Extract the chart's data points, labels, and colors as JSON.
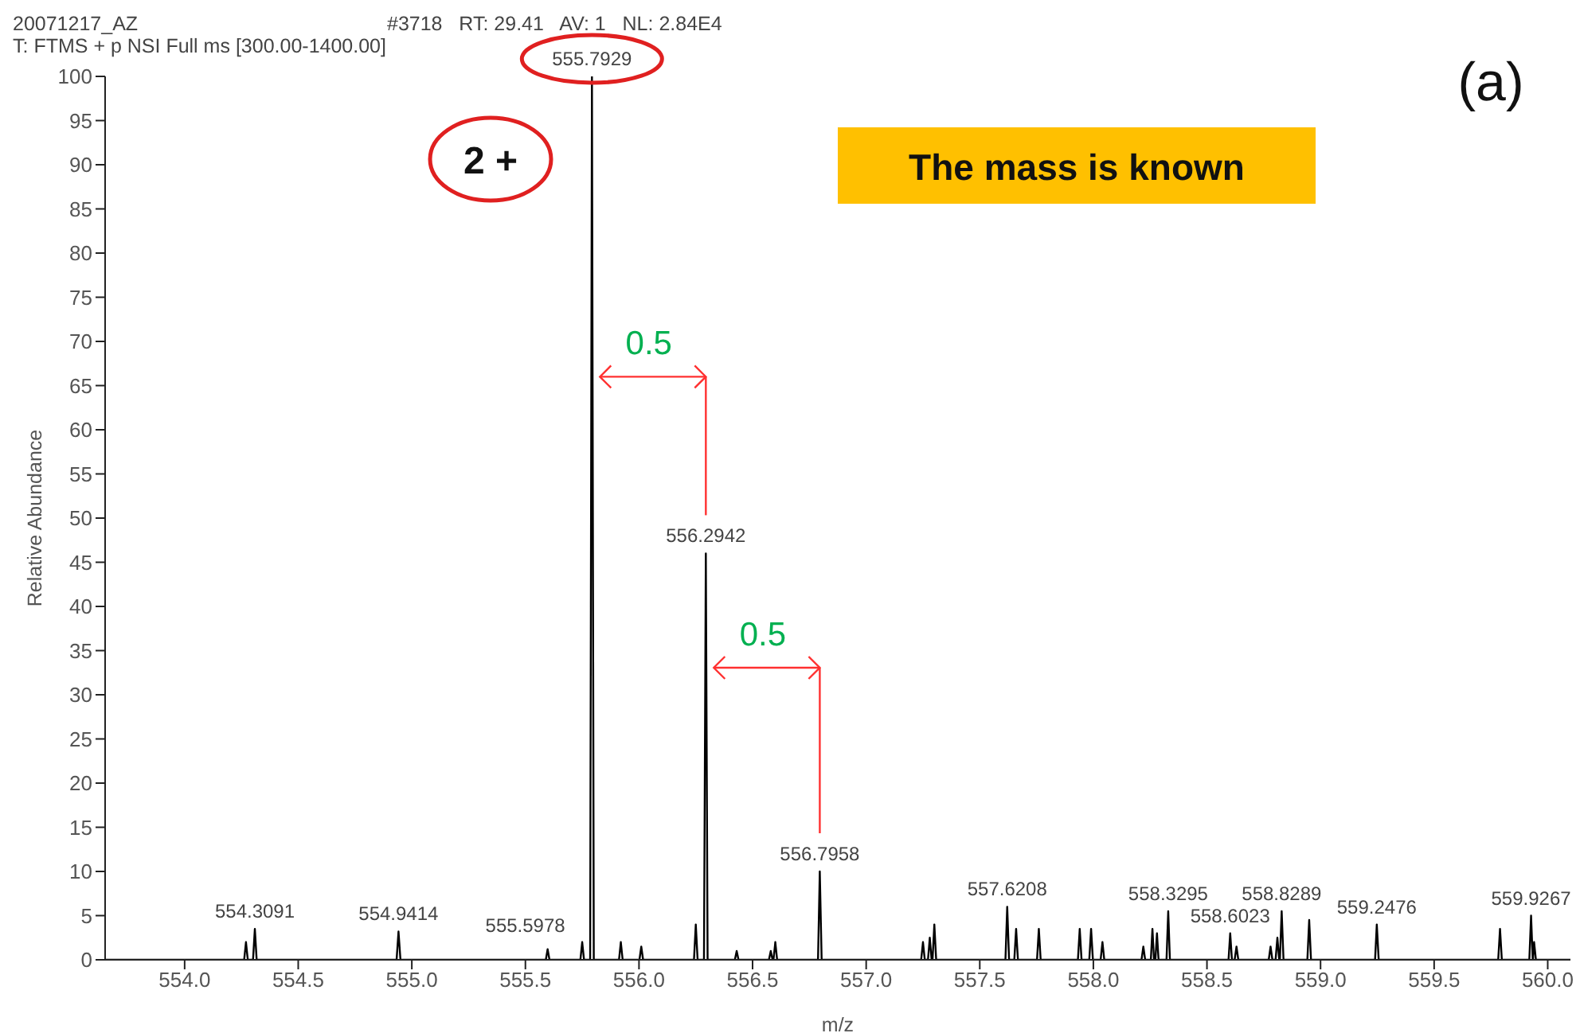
{
  "chart_data": {
    "type": "line",
    "xlabel": "m/z",
    "ylabel": "Relative Abundance",
    "annotations": [
      "20071217_AZ",
      "#3718   RT: 29.41   AV: 1   NL: 2.84E4",
      "T: FTMS + p NSI Full ms [300.00-1400.00]",
      "(a)",
      "2 +",
      "The mass is known",
      "0.5",
      "0.5",
      {
        "text": "554.3091",
        "x": 554.3091,
        "y": 3.5
      },
      {
        "text": "554.9414",
        "x": 554.9414,
        "y": 3.2
      },
      {
        "text": "555.5978",
        "x": 555.5978,
        "y": 1.2
      },
      {
        "text": "555.7929",
        "x": 555.7929,
        "y": 100
      },
      {
        "text": "556.2942",
        "x": 556.2942,
        "y": 46
      },
      {
        "text": "556.7958",
        "x": 556.7958,
        "y": 10
      },
      {
        "text": "557.6208",
        "x": 557.6208,
        "y": 6
      },
      {
        "text": "558.3295",
        "x": 558.3295,
        "y": 5.5
      },
      {
        "text": "558.6023",
        "x": 558.6023,
        "y": 3
      },
      {
        "text": "558.8289",
        "x": 558.8289,
        "y": 5.5
      },
      {
        "text": "559.2476",
        "x": 559.2476,
        "y": 4
      },
      {
        "text": "559.9267",
        "x": 559.9267,
        "y": 5
      }
    ],
    "x": [
      553.65,
      554.262,
      554.27,
      554.278,
      554.301,
      554.3091,
      554.317,
      554.933,
      554.9414,
      554.95,
      555.59,
      555.5978,
      555.606,
      555.742,
      555.75,
      555.758,
      555.785,
      555.7929,
      555.801,
      555.912,
      555.92,
      555.928,
      556.002,
      556.01,
      556.018,
      556.242,
      556.25,
      556.258,
      556.286,
      556.2942,
      556.302,
      556.422,
      556.43,
      556.438,
      556.572,
      556.58,
      556.588,
      556.592,
      556.6,
      556.608,
      556.788,
      556.7958,
      556.804,
      557.242,
      557.25,
      557.258,
      557.272,
      557.28,
      557.288,
      557.292,
      557.3,
      557.308,
      557.613,
      557.6208,
      557.629,
      557.652,
      557.66,
      557.668,
      557.752,
      557.76,
      557.768,
      557.932,
      557.94,
      557.948,
      557.982,
      557.99,
      557.998,
      558.032,
      558.04,
      558.048,
      558.212,
      558.22,
      558.228,
      558.253,
      558.26,
      558.267,
      558.273,
      558.28,
      558.287,
      558.322,
      558.3295,
      558.337,
      558.595,
      558.6023,
      558.61,
      558.622,
      558.63,
      558.638,
      558.772,
      558.78,
      558.788,
      558.802,
      558.81,
      558.818,
      558.821,
      558.8289,
      558.837,
      558.942,
      558.95,
      558.958,
      559.24,
      559.2476,
      559.256,
      559.782,
      559.79,
      559.798,
      559.919,
      559.9267,
      559.934,
      559.935,
      559.94,
      559.948,
      560.1
    ],
    "series": [
      {
        "color": "#000000",
        "values": [
          0,
          0,
          2,
          0,
          0,
          3.5,
          0,
          0,
          3.2,
          0,
          0,
          1.2,
          0,
          0,
          2,
          0,
          0,
          100,
          0,
          0,
          2,
          0,
          0,
          1.5,
          0,
          0,
          4,
          0,
          0,
          46,
          0,
          0,
          1,
          0,
          0,
          1,
          0,
          0,
          2,
          0,
          0,
          10,
          0,
          0,
          2,
          0,
          0,
          2.5,
          0,
          0,
          4,
          0,
          0,
          6,
          0,
          0,
          3.5,
          0,
          0,
          3.5,
          0,
          0,
          3.5,
          0,
          0,
          3.5,
          0,
          0,
          2,
          0,
          0,
          1.5,
          0,
          0,
          3.5,
          0,
          0,
          3,
          0,
          0,
          5.5,
          0,
          0,
          3,
          0,
          0,
          1.5,
          0,
          0,
          1.5,
          0,
          0,
          2.5,
          0,
          0,
          5.5,
          0,
          0,
          4.5,
          0,
          0,
          4,
          0,
          0,
          3.5,
          0,
          0,
          5,
          0,
          0,
          2,
          0,
          0
        ]
      }
    ],
    "xlim": [
      553.65,
      560.1
    ],
    "xticks": [
      {
        "value": 554,
        "label": "554.0"
      },
      554.5,
      {
        "value": 555,
        "label": "555.0"
      },
      555.5,
      {
        "value": 556,
        "label": "556.0"
      },
      556.5,
      {
        "value": 557,
        "label": "557.0"
      },
      557.5,
      {
        "value": 558,
        "label": "558.0"
      },
      558.5,
      {
        "value": 559,
        "label": "559.0"
      },
      559.5,
      {
        "value": 560,
        "label": "560.0"
      }
    ],
    "ylim": [
      0,
      100
    ],
    "yticks": [
      0,
      5,
      10,
      15,
      20,
      25,
      30,
      35,
      40,
      45,
      50,
      55,
      60,
      65,
      70,
      75,
      80,
      85,
      90,
      95,
      100
    ],
    "grid": false,
    "legend": false,
    "marker": "none",
    "line_style": "solid"
  }
}
